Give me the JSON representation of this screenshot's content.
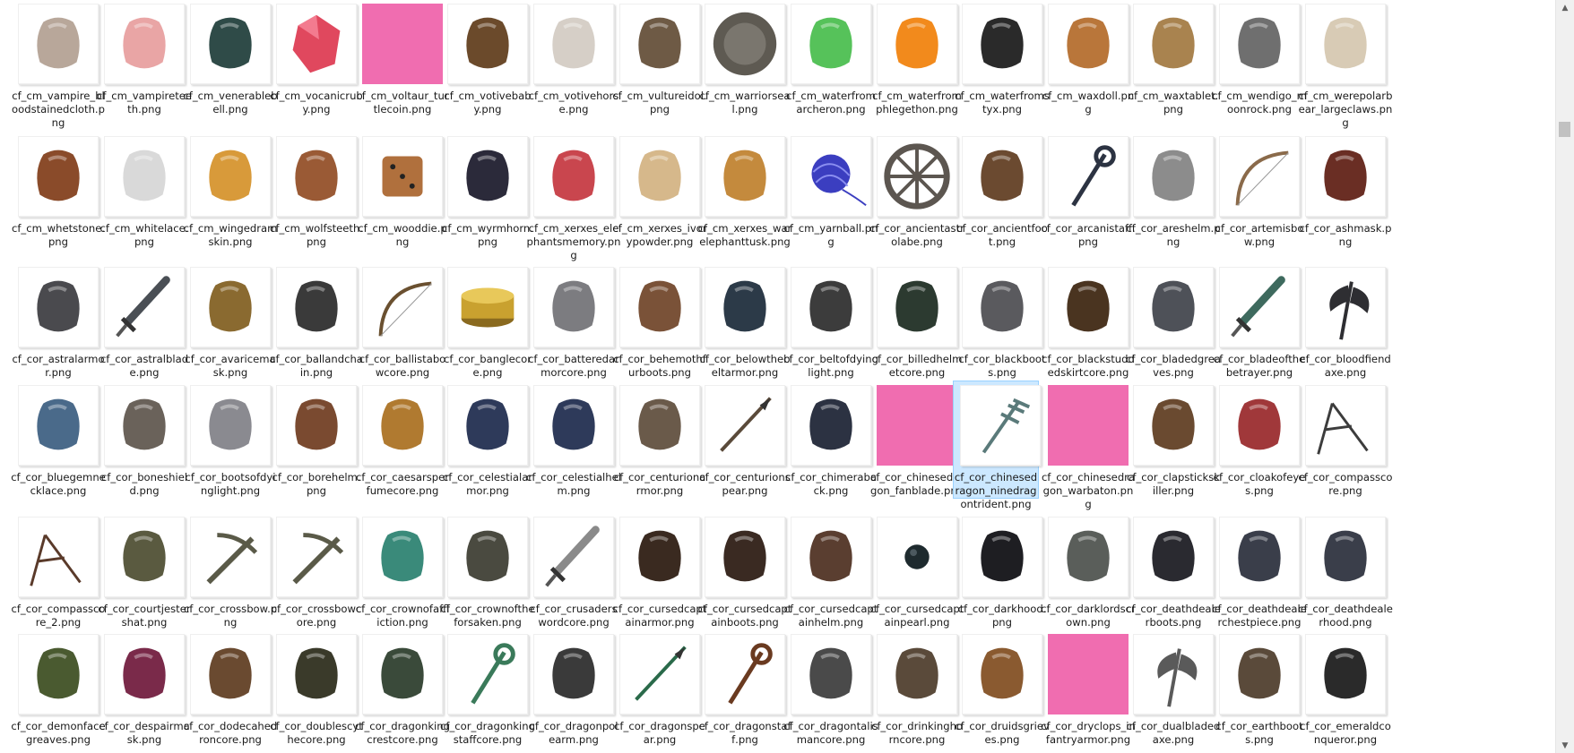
{
  "view": "file-explorer-large-icons",
  "selected_file": "cf_cor_chinesedragon_ninedragontrident.png",
  "files": [
    {
      "name": "cf_cm_vampire_bloodstainedcloth.png",
      "icon": "bloodstained-cloth-icon",
      "color": "#b8a79a"
    },
    {
      "name": "cf_cm_vampireteeth.png",
      "icon": "vampire-teeth-icon",
      "color": "#e9a5a5"
    },
    {
      "name": "cf_cm_venerablebell.png",
      "icon": "bell-icon",
      "color": "#2f4b48"
    },
    {
      "name": "cf_cm_vocanicruby.png",
      "icon": "ruby-icon",
      "color": "#e0485e"
    },
    {
      "name": "cf_cm_voltaur_turtlecoin.png",
      "icon": "missing-image-placeholder",
      "color": "#f06db0"
    },
    {
      "name": "cf_cm_votivebaby.png",
      "icon": "figurine-icon",
      "color": "#6b4a2b"
    },
    {
      "name": "cf_cm_votivehorse.png",
      "icon": "horse-figurine-icon",
      "color": "#d6cfc7"
    },
    {
      "name": "cf_cm_vultureidol.png",
      "icon": "vulture-icon",
      "color": "#6e5a45"
    },
    {
      "name": "cf_cm_warriorseal.png",
      "icon": "seal-icon",
      "color": "#5e5a52"
    },
    {
      "name": "cf_cm_waterfromarcheron.png",
      "icon": "green-potion-icon",
      "color": "#56c25a"
    },
    {
      "name": "cf_cm_waterfromphlegethon.png",
      "icon": "fire-potion-icon",
      "color": "#f28a1c"
    },
    {
      "name": "cf_cm_waterfromstyx.png",
      "icon": "dark-potion-icon",
      "color": "#2a2a2a"
    },
    {
      "name": "cf_cm_waxdoll.png",
      "icon": "wax-doll-icon",
      "color": "#b9763a"
    },
    {
      "name": "cf_cm_waxtablet.png",
      "icon": "wax-tablet-icon",
      "color": "#a9834f"
    },
    {
      "name": "cf_cm_wendigo_moonrock.png",
      "icon": "rock-icon",
      "color": "#6f6f6f"
    },
    {
      "name": "cf_cm_werepolarbear_largeclaws.png",
      "icon": "claws-icon",
      "color": "#d8cbb5"
    },
    {
      "name": "cf_cm_whetstone.png",
      "icon": "whetstone-icon",
      "color": "#8a4b2a"
    },
    {
      "name": "cf_cm_whitelace.png",
      "icon": "lace-icon",
      "color": "#d9d9d9"
    },
    {
      "name": "cf_cm_wingedramskin.png",
      "icon": "ram-skin-icon",
      "color": "#d89a3a"
    },
    {
      "name": "cf_cm_wolfsteeth.png",
      "icon": "tooth-icon",
      "color": "#9a5a35"
    },
    {
      "name": "cf_cm_wooddie.png",
      "icon": "dice-icon",
      "color": "#b0703d"
    },
    {
      "name": "cf_cm_wyrmhorn.png",
      "icon": "horn-icon",
      "color": "#2b2a3a"
    },
    {
      "name": "cf_cm_xerxes_elephantsmemory.png",
      "icon": "brain-icon",
      "color": "#c9464e"
    },
    {
      "name": "cf_cm_xerxes_ivorypowder.png",
      "icon": "powder-bowl-icon",
      "color": "#d6b88b"
    },
    {
      "name": "cf_cm_xerxes_warelephanttusk.png",
      "icon": "tusk-icon",
      "color": "#c48a3d"
    },
    {
      "name": "cf_cm_yarnball.png",
      "icon": "yarn-ball-icon",
      "color": "#3b3ec0"
    },
    {
      "name": "cf_cor_ancientastrolabe.png",
      "icon": "astrolabe-icon",
      "color": "#5c5650"
    },
    {
      "name": "cf_cor_ancientfoot.png",
      "icon": "boots-icon",
      "color": "#6b4a30"
    },
    {
      "name": "cf_cor_arcanistaff.png",
      "icon": "staff-icon",
      "color": "#2c3342"
    },
    {
      "name": "cf_cor_areshelm.png",
      "icon": "helm-icon",
      "color": "#8c8c8c"
    },
    {
      "name": "cf_cor_artemisbow.png",
      "icon": "bow-icon",
      "color": "#8a6a4a"
    },
    {
      "name": "cf_cor_ashmask.png",
      "icon": "mask-icon",
      "color": "#6a2e24"
    },
    {
      "name": "cf_cor_astralarmor.png",
      "icon": "armor-icon",
      "color": "#4a4a4e"
    },
    {
      "name": "cf_cor_astralblade.png",
      "icon": "sword-icon",
      "color": "#4a4f55"
    },
    {
      "name": "cf_cor_avaricemask.png",
      "icon": "hood-mask-icon",
      "color": "#8a6a30"
    },
    {
      "name": "cf_cor_ballandchain.png",
      "icon": "ball-chain-icon",
      "color": "#3a3a3a"
    },
    {
      "name": "cf_cor_ballistabowcore.png",
      "icon": "bow-icon",
      "color": "#6a5030"
    },
    {
      "name": "cf_cor_banglecore.png",
      "icon": "bangle-icon",
      "color": "#c9a12f"
    },
    {
      "name": "cf_cor_batteredarmorcore.png",
      "icon": "armor-icon",
      "color": "#7c7c80"
    },
    {
      "name": "cf_cor_behemothfurboots.png",
      "icon": "boots-icon",
      "color": "#7a5238"
    },
    {
      "name": "cf_cor_belowthebeltarmor.png",
      "icon": "belt-armor-icon",
      "color": "#2c3a48"
    },
    {
      "name": "cf_cor_beltofdyinglight.png",
      "icon": "belt-icon",
      "color": "#3c3c3c"
    },
    {
      "name": "cf_cor_billedhelmetcore.png",
      "icon": "helmet-icon",
      "color": "#2c3a30"
    },
    {
      "name": "cf_cor_blackboots.png",
      "icon": "boots-icon",
      "color": "#5a5a5e"
    },
    {
      "name": "cf_cor_blackstuddedskirtcore.png",
      "icon": "skirt-icon",
      "color": "#4a3420"
    },
    {
      "name": "cf_cor_bladedgreaves.png",
      "icon": "greaves-icon",
      "color": "#4e5158"
    },
    {
      "name": "cf_cor_bladeofthebetrayer.png",
      "icon": "sword-icon",
      "color": "#3e6a5e"
    },
    {
      "name": "cf_cor_bloodfiendaxe.png",
      "icon": "axe-icon",
      "color": "#2e2e32"
    },
    {
      "name": "cf_cor_bluegemnecklace.png",
      "icon": "necklace-icon",
      "color": "#4a6a8a"
    },
    {
      "name": "cf_cor_boneshield.png",
      "icon": "shield-icon",
      "color": "#6a625a"
    },
    {
      "name": "cf_cor_bootsofdyinglight.png",
      "icon": "boots-icon",
      "color": "#8a8a90"
    },
    {
      "name": "cf_cor_borehelm.png",
      "icon": "helm-icon",
      "color": "#7a4a30"
    },
    {
      "name": "cf_cor_caesarsperfumecore.png",
      "icon": "perfume-bottle-icon",
      "color": "#b07a30"
    },
    {
      "name": "cf_cor_celestialarmor.png",
      "icon": "armor-icon",
      "color": "#2e3a5a"
    },
    {
      "name": "cf_cor_celestialhelm.png",
      "icon": "helm-icon",
      "color": "#2e3a5a"
    },
    {
      "name": "cf_cor_centurionarmor.png",
      "icon": "armor-icon",
      "color": "#6a5a4a"
    },
    {
      "name": "cf_cor_centurionspear.png",
      "icon": "spear-icon",
      "color": "#5a4a3a"
    },
    {
      "name": "cf_cor_chimeraback.png",
      "icon": "jacket-icon",
      "color": "#2c3242"
    },
    {
      "name": "cf_cor_chinesedragon_fanblade.png",
      "icon": "missing-image-placeholder",
      "color": "#f06db0"
    },
    {
      "name": "cf_cor_chinesedragon_ninedragontrident.png",
      "icon": "trident-icon",
      "color": "#5a7a7a"
    },
    {
      "name": "cf_cor_chinesedragon_warbaton.png",
      "icon": "missing-image-placeholder",
      "color": "#f06db0"
    },
    {
      "name": "cf_cor_clapstickskiller.png",
      "icon": "sticks-icon",
      "color": "#6a4a30"
    },
    {
      "name": "cf_cor_cloakofeyes.png",
      "icon": "cloak-icon",
      "color": "#a0383a"
    },
    {
      "name": "cf_cor_compasscore.png",
      "icon": "compass-icon",
      "color": "#3c3c3c"
    },
    {
      "name": "cf_cor_compasscore_2.png",
      "icon": "compass-icon",
      "color": "#5a3a2a"
    },
    {
      "name": "cf_cor_courtjestershat.png",
      "icon": "jester-hat-icon",
      "color": "#5a5a40"
    },
    {
      "name": "cf_cor_crossbow.png",
      "icon": "crossbow-icon",
      "color": "#5a5a48"
    },
    {
      "name": "cf_cor_crossbowcore.png",
      "icon": "crossbow-icon",
      "color": "#5a5a48"
    },
    {
      "name": "cf_cor_crownofaffliction.png",
      "icon": "crown-icon",
      "color": "#3a8a7a"
    },
    {
      "name": "cf_cor_crownoftheforsaken.png",
      "icon": "crown-helm-icon",
      "color": "#4a4a40"
    },
    {
      "name": "cf_cor_crusaderswordcore.png",
      "icon": "sword-icon",
      "color": "#8a8a8a"
    },
    {
      "name": "cf_cor_cursedcaptainarmor.png",
      "icon": "armor-icon",
      "color": "#3a2a20"
    },
    {
      "name": "cf_cor_cursedcaptainboots.png",
      "icon": "boots-icon",
      "color": "#3a2a22"
    },
    {
      "name": "cf_cor_cursedcaptainhelm.png",
      "icon": "hat-icon",
      "color": "#5a3e30"
    },
    {
      "name": "cf_cor_cursedcaptainpearl.png",
      "icon": "pearl-icon",
      "color": "#1e2a2e"
    },
    {
      "name": "cf_cor_darkhood.png",
      "icon": "hood-icon",
      "color": "#1e1e22"
    },
    {
      "name": "cf_cor_darklordscrown.png",
      "icon": "helmet-icon",
      "color": "#5a5e5a"
    },
    {
      "name": "cf_cor_deathdealerboots.png",
      "icon": "boots-icon",
      "color": "#2a2a30"
    },
    {
      "name": "cf_cor_deathdealerchestpiece.png",
      "icon": "armor-icon",
      "color": "#3a3e4a"
    },
    {
      "name": "cf_cor_deathdealerhood.png",
      "icon": "hood-icon",
      "color": "#3a3e4a"
    },
    {
      "name": "cf_cor_demonfacegreaves.png",
      "icon": "greaves-icon",
      "color": "#4a5a30"
    },
    {
      "name": "cf_cor_despairmask.png",
      "icon": "mask-icon",
      "color": "#7a2a4a"
    },
    {
      "name": "cf_cor_dodecahedroncore.png",
      "icon": "dodecahedron-icon",
      "color": "#6a4a30"
    },
    {
      "name": "cf_cor_doublescythecore.png",
      "icon": "scythe-icon",
      "color": "#3a3a2a"
    },
    {
      "name": "cf_cor_dragonkingcrestcore.png",
      "icon": "crest-icon",
      "color": "#3a4a3a"
    },
    {
      "name": "cf_cor_dragonkingstaffcore.png",
      "icon": "staff-icon",
      "color": "#3a7a5a"
    },
    {
      "name": "cf_cor_dragonpolearm.png",
      "icon": "polearm-icon",
      "color": "#3a3a3a"
    },
    {
      "name": "cf_cor_dragonspear.png",
      "icon": "spear-icon",
      "color": "#2a6a4a"
    },
    {
      "name": "cf_cor_dragonstaff.png",
      "icon": "staff-icon",
      "color": "#6a3a20"
    },
    {
      "name": "cf_cor_dragontalismancore.png",
      "icon": "talisman-icon",
      "color": "#4a4a4a"
    },
    {
      "name": "cf_cor_drinkinghorncore.png",
      "icon": "horn-icon",
      "color": "#5a4a3a"
    },
    {
      "name": "cf_cor_druidsgrieves.png",
      "icon": "wood-greaves-icon",
      "color": "#8a5a30"
    },
    {
      "name": "cf_cor_dryclops_infantryarmor.png",
      "icon": "missing-image-placeholder",
      "color": "#f06db0"
    },
    {
      "name": "cf_cor_dualbladedaxe.png",
      "icon": "axe-icon",
      "color": "#5a5a5a"
    },
    {
      "name": "cf_cor_earthboots.png",
      "icon": "boots-icon",
      "color": "#5a4a3a"
    },
    {
      "name": "cf_cor_emeraldconqueror.png",
      "icon": "helm-icon",
      "color": "#2a2a2a"
    }
  ]
}
